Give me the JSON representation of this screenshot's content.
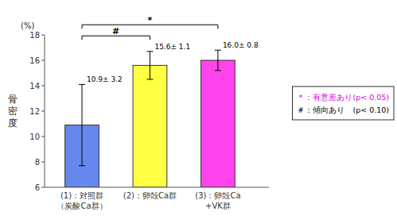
{
  "chart_data": {
    "type": "bar",
    "categories": [
      "(1)：対照群\n（炭酸Ca群）",
      "(2)：卵殻Ca群",
      "(3)：卵殻Ca\n+VK群"
    ],
    "values": [
      10.9,
      15.6,
      16.0
    ],
    "errors": [
      3.2,
      1.1,
      0.8
    ],
    "value_labels": [
      "10.9± 3.2",
      "15.6± 1.1",
      "16.0± 0.8"
    ],
    "data_labels": true,
    "colors": [
      "#6688ee",
      "#ffff44",
      "#ff44ee"
    ],
    "ylabel": "骨\n密\n度",
    "ylim": [
      6,
      18
    ],
    "yticks": [
      6,
      8,
      10,
      12,
      14,
      16,
      18
    ],
    "annotations": [
      {
        "type": "units",
        "text": "(%)"
      },
      {
        "type": "bracket",
        "text": "#",
        "from": 0,
        "to": 1
      },
      {
        "type": "bracket",
        "text": "*",
        "from": 0,
        "to": 2
      },
      {
        "type": "note",
        "text": "＊：有意差あり(p< 0.05)",
        "color": "#dd00dd"
      },
      {
        "type": "note",
        "text": "＃：傾向あり　(p< 0.10)",
        "color": "#000000"
      }
    ]
  }
}
